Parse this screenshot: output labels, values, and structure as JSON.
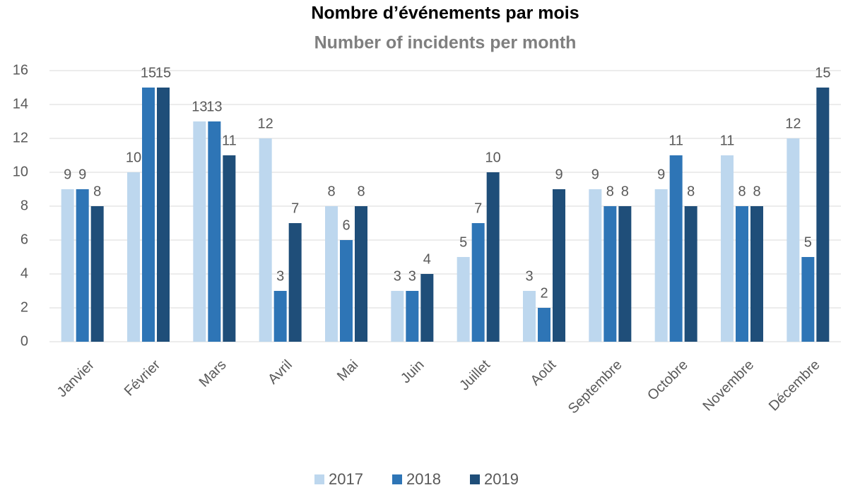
{
  "chart_data": {
    "type": "bar",
    "title": "Nombre d’événements par mois",
    "subtitle": "Number of incidents per month",
    "categories": [
      "Janvier",
      "Février",
      "Mars",
      "Avril",
      "Mai",
      "Juin",
      "Juillet",
      "Août",
      "Septembre",
      "Octobre",
      "Novembre",
      "Décembre"
    ],
    "series": [
      {
        "name": "2017",
        "color": "#bdd7ee",
        "values": [
          9,
          10,
          13,
          12,
          8,
          3,
          5,
          3,
          9,
          9,
          11,
          12
        ]
      },
      {
        "name": "2018",
        "color": "#2e75b6",
        "values": [
          9,
          15,
          13,
          3,
          6,
          3,
          7,
          2,
          8,
          11,
          8,
          5
        ]
      },
      {
        "name": "2019",
        "color": "#1f4e79",
        "values": [
          8,
          15,
          11,
          7,
          8,
          4,
          10,
          9,
          8,
          8,
          8,
          15
        ]
      }
    ],
    "ylim": [
      0,
      16
    ],
    "yticks": [
      0,
      2,
      4,
      6,
      8,
      10,
      12,
      14,
      16
    ],
    "grid": true,
    "legend": "bottom"
  }
}
